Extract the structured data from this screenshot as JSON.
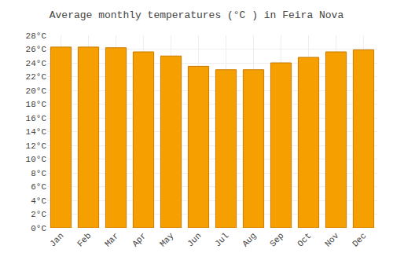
{
  "chart_data": {
    "type": "bar",
    "title": "Average monthly temperatures (°C ) in Feira Nova",
    "categories": [
      "Jan",
      "Feb",
      "Mar",
      "Apr",
      "May",
      "Jun",
      "Jul",
      "Aug",
      "Sep",
      "Oct",
      "Nov",
      "Dec"
    ],
    "values": [
      26.3,
      26.3,
      26.2,
      25.6,
      25.0,
      23.5,
      23.0,
      23.0,
      24.0,
      24.8,
      25.6,
      25.9
    ],
    "color": "#F5A000",
    "ylim": [
      0,
      28
    ],
    "yticks": [
      {
        "value": 0,
        "label": "0°C"
      },
      {
        "value": 2,
        "label": "2°C"
      },
      {
        "value": 4,
        "label": "4°C"
      },
      {
        "value": 6,
        "label": "6°C"
      },
      {
        "value": 8,
        "label": "8°C"
      },
      {
        "value": 10,
        "label": "10°C"
      },
      {
        "value": 12,
        "label": "12°C"
      },
      {
        "value": 14,
        "label": "14°C"
      },
      {
        "value": 16,
        "label": "16°C"
      },
      {
        "value": 18,
        "label": "18°C"
      },
      {
        "value": 20,
        "label": "20°C"
      },
      {
        "value": 22,
        "label": "22°C"
      },
      {
        "value": 24,
        "label": "24°C"
      },
      {
        "value": 26,
        "label": "26°C"
      },
      {
        "value": 28,
        "label": "28°C"
      }
    ],
    "grid": true
  }
}
